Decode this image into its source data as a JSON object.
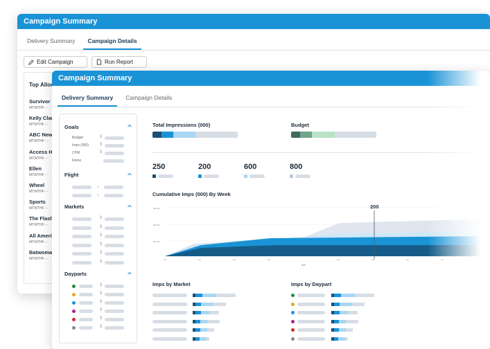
{
  "back": {
    "title": "Campaign Summary",
    "tabs": [
      {
        "label": "Delivery Summary"
      },
      {
        "label": "Campaign Details"
      }
    ],
    "buttons": {
      "edit": "Edit Campaign",
      "run": "Run Report"
    },
    "panel_title": "Top Alloc",
    "items": [
      {
        "name": "Survivor",
        "days": "MTWTHF - -"
      },
      {
        "name": "Kelly Clark",
        "days": "MTWTHF - -"
      },
      {
        "name": "ABC News",
        "days": "MTWTHF - -"
      },
      {
        "name": "Access Hol",
        "days": "MTWTHF - -"
      },
      {
        "name": "Ellen",
        "days": "MTWTHF - -"
      },
      {
        "name": "Wheel",
        "days": "MTWTHF - -"
      },
      {
        "name": "Sports",
        "days": "MTWTHF - -"
      },
      {
        "name": "The Flash",
        "days": "MTWTHF - -"
      },
      {
        "name": "All Americ",
        "days": "MTWTHF - -"
      },
      {
        "name": "Batwoma",
        "days": "MTWTHF - -"
      }
    ]
  },
  "front": {
    "title": "Campaign Summary",
    "tabs": [
      {
        "label": "Delivery Summary"
      },
      {
        "label": "Campaign Details"
      }
    ],
    "sidebar": {
      "goals": {
        "title": "Goals",
        "items": [
          "Budget",
          "Imps (000)",
          "CPM",
          "Demo"
        ]
      },
      "flight": {
        "title": "Flight"
      },
      "markets": {
        "title": "Markets"
      },
      "dayparts": {
        "title": "Dayparts"
      }
    },
    "total_impressions": {
      "label": "Total Impressions (000)"
    },
    "budget": {
      "label": "Budget"
    },
    "stats": [
      "250",
      "200",
      "600",
      "800"
    ],
    "chart_title": "Cumulative Imps (000) By Week",
    "chart_marker": "200",
    "x_tick_mid": "4/9",
    "imps_by_market": "Imps by Market",
    "imps_by_daypart": "Imps by Daypart"
  },
  "colors": {
    "accent": "#1a93d6",
    "dark": "#145c87",
    "navy": "#1c4e73",
    "light": "#a9d6f2",
    "green_dark": "#3f6b5b",
    "green_mid": "#6fa58a",
    "green_light": "#b9e2c7"
  }
}
